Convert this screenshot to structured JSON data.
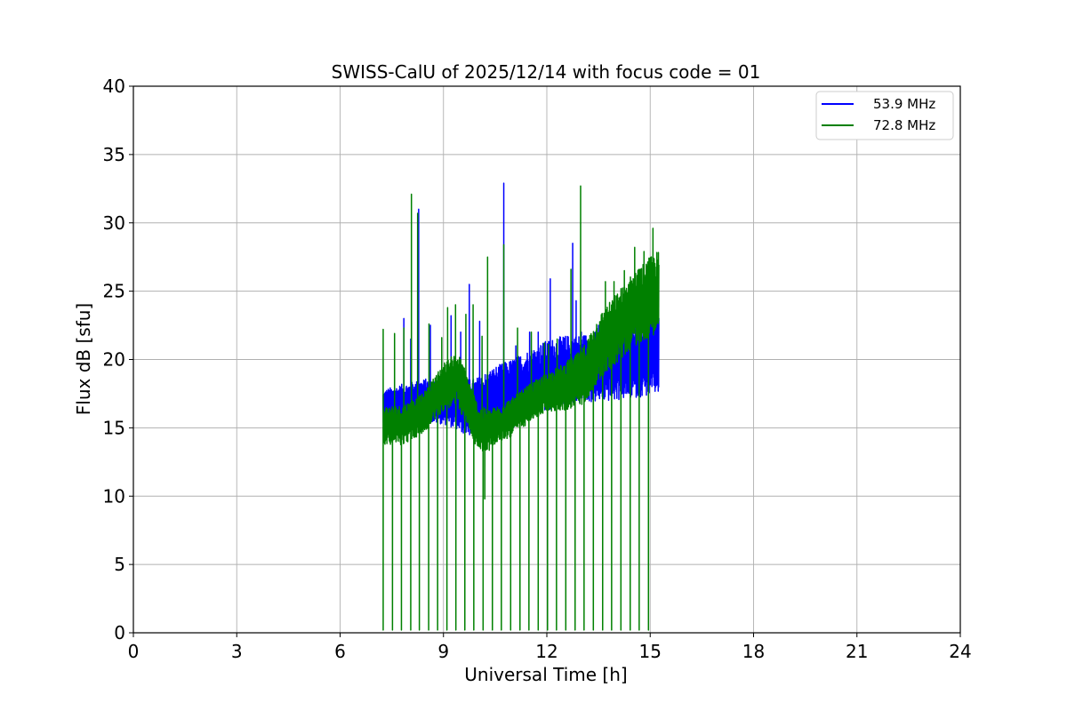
{
  "chart_data": {
    "type": "line",
    "title": "SWISS-CalU of 2025/12/14 with focus code = 01",
    "xlabel": "Universal Time [h]",
    "ylabel": "Flux dB [sfu]",
    "xlim": [
      0,
      24
    ],
    "ylim": [
      0,
      40
    ],
    "xticks": [
      0,
      3,
      6,
      9,
      12,
      15,
      18,
      21,
      24
    ],
    "yticks": [
      0,
      5,
      10,
      15,
      20,
      25,
      30,
      35,
      40
    ],
    "grid": true,
    "legend_position": "top-right",
    "series": [
      {
        "name": "53.9 MHz",
        "color": "#0000ff",
        "t_start": 7.25,
        "t_end": 15.25,
        "baseline": [
          [
            7.25,
            16.2
          ],
          [
            7.8,
            16.6
          ],
          [
            8.5,
            17.0
          ],
          [
            9.2,
            16.8
          ],
          [
            9.6,
            16.5
          ],
          [
            10.0,
            16.5
          ],
          [
            10.5,
            17.0
          ],
          [
            11.0,
            17.5
          ],
          [
            11.5,
            18.2
          ],
          [
            12.0,
            18.8
          ],
          [
            12.5,
            19.2
          ],
          [
            13.0,
            19.3
          ],
          [
            13.5,
            19.5
          ],
          [
            14.0,
            19.7
          ],
          [
            14.5,
            20.0
          ],
          [
            15.0,
            20.3
          ],
          [
            15.25,
            20.5
          ]
        ],
        "spread": [
          [
            7.25,
            1.6
          ],
          [
            9.0,
            1.6
          ],
          [
            10.5,
            2.5
          ],
          [
            12.0,
            2.6
          ],
          [
            13.0,
            2.5
          ],
          [
            15.25,
            3.0
          ]
        ],
        "spikes": [
          [
            7.52,
            17.6
          ],
          [
            7.85,
            23.0
          ],
          [
            8.05,
            21.5
          ],
          [
            8.28,
            31.0
          ],
          [
            8.62,
            22.5
          ],
          [
            9.22,
            23.2
          ],
          [
            9.5,
            22.0
          ],
          [
            9.75,
            25.5
          ],
          [
            10.05,
            22.8
          ],
          [
            10.5,
            18.8
          ],
          [
            10.75,
            32.9
          ],
          [
            11.1,
            21.0
          ],
          [
            11.5,
            22.0
          ],
          [
            11.75,
            22.0
          ],
          [
            12.1,
            25.9
          ],
          [
            12.75,
            28.5
          ],
          [
            12.85,
            24.3
          ],
          [
            13.0,
            22.0
          ],
          [
            13.5,
            22.5
          ],
          [
            14.0,
            22.0
          ],
          [
            14.5,
            22.5
          ],
          [
            15.05,
            23.0
          ]
        ]
      },
      {
        "name": "72.8 MHz",
        "color": "#008000",
        "t_start": 7.25,
        "t_end": 15.25,
        "baseline": [
          [
            7.25,
            15.2
          ],
          [
            7.8,
            15.2
          ],
          [
            8.4,
            16.0
          ],
          [
            9.0,
            18.0
          ],
          [
            9.4,
            18.6
          ],
          [
            9.7,
            17.0
          ],
          [
            10.0,
            15.0
          ],
          [
            10.3,
            14.8
          ],
          [
            10.6,
            15.3
          ],
          [
            11.0,
            15.8
          ],
          [
            11.5,
            16.8
          ],
          [
            12.0,
            17.6
          ],
          [
            12.5,
            18.0
          ],
          [
            13.0,
            18.6
          ],
          [
            13.5,
            20.8
          ],
          [
            14.0,
            22.2
          ],
          [
            14.5,
            23.6
          ],
          [
            15.0,
            24.6
          ],
          [
            15.25,
            25.0
          ]
        ],
        "spread": [
          [
            7.25,
            1.4
          ],
          [
            8.5,
            1.5
          ],
          [
            9.5,
            2.0
          ],
          [
            10.5,
            1.4
          ],
          [
            12.0,
            1.4
          ],
          [
            13.5,
            2.4
          ],
          [
            15.25,
            3.0
          ]
        ],
        "spikes": [
          [
            7.25,
            22.2
          ],
          [
            7.58,
            21.9
          ],
          [
            7.85,
            22.3
          ],
          [
            8.07,
            32.1
          ],
          [
            8.25,
            30.7
          ],
          [
            8.58,
            22.6
          ],
          [
            8.95,
            21.6
          ],
          [
            9.12,
            23.8
          ],
          [
            9.35,
            24.0
          ],
          [
            9.65,
            23.3
          ],
          [
            9.86,
            24.0
          ],
          [
            10.12,
            21.7
          ],
          [
            10.2,
            9.8
          ],
          [
            10.28,
            27.5
          ],
          [
            10.75,
            28.4
          ],
          [
            11.15,
            22.3
          ],
          [
            11.55,
            22.0
          ],
          [
            11.93,
            21.2
          ],
          [
            12.05,
            21.1
          ],
          [
            12.3,
            21.5
          ],
          [
            12.7,
            26.6
          ],
          [
            12.98,
            32.7
          ],
          [
            13.7,
            25.7
          ],
          [
            13.95,
            25.7
          ],
          [
            14.25,
            26.5
          ],
          [
            14.55,
            28.2
          ],
          [
            14.82,
            27.9
          ],
          [
            15.08,
            29.6
          ]
        ],
        "dips": [
          7.25,
          7.52,
          7.78,
          8.05,
          8.3,
          8.57,
          8.83,
          9.1,
          9.36,
          9.62,
          9.88,
          10.15,
          10.42,
          10.68,
          10.95,
          11.22,
          11.48,
          11.75,
          12.02,
          12.28,
          12.55,
          12.82,
          13.08,
          13.35,
          13.62,
          13.88,
          14.15,
          14.42,
          14.68,
          14.95
        ],
        "dip_floor": 0.2
      }
    ]
  }
}
